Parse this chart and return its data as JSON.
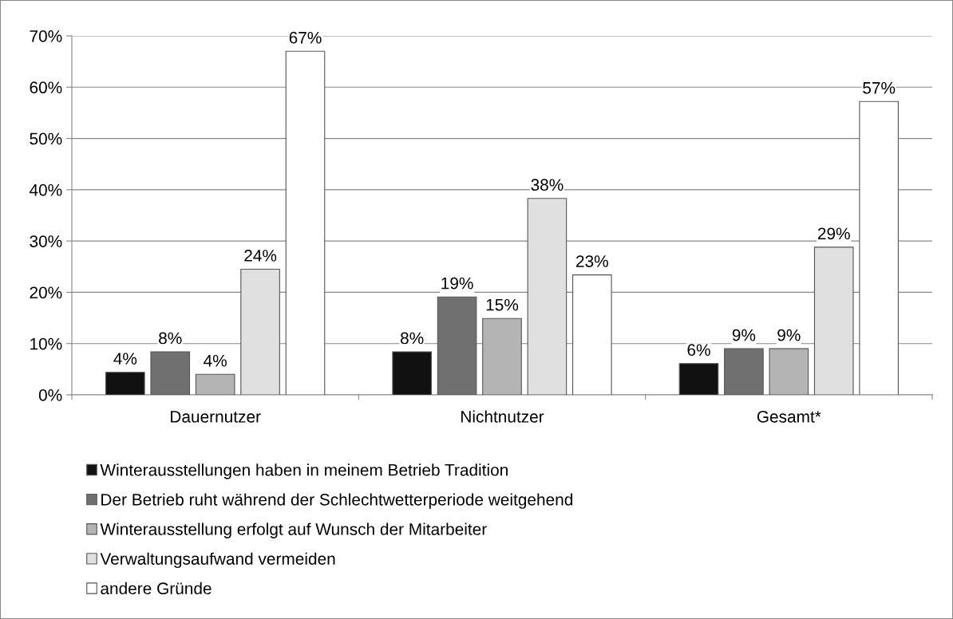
{
  "chart_data": {
    "type": "bar",
    "categories": [
      "Dauernutzer",
      "Nichtnutzer",
      "Gesamt*"
    ],
    "series": [
      {
        "name": "Winterausstellungen haben in meinem Betrieb Tradition",
        "color": "#111111",
        "values": [
          4.4,
          8.4,
          6.1
        ],
        "value_labels": [
          "4%",
          "8%",
          "6%"
        ]
      },
      {
        "name": "Der Betrieb ruht während der Schlechtwetterperiode weitgehend",
        "color": "#707070",
        "values": [
          8.4,
          19.1,
          9.0
        ],
        "value_labels": [
          "8%",
          "19%",
          "9%"
        ]
      },
      {
        "name": "Winterausstellung erfolgt auf Wunsch der Mitarbeiter",
        "color": "#b4b4b4",
        "values": [
          4.0,
          14.9,
          9.0
        ],
        "value_labels": [
          "4%",
          "15%",
          "9%"
        ]
      },
      {
        "name": "Verwaltungsaufwand vermeiden",
        "color": "#e0e0e0",
        "values": [
          24.5,
          38.3,
          28.8
        ],
        "value_labels": [
          "24%",
          "38%",
          "29%"
        ]
      },
      {
        "name": "andere Gründe",
        "color": "#ffffff",
        "values": [
          67.0,
          23.4,
          57.2
        ],
        "value_labels": [
          "67%",
          "23%",
          "57%"
        ]
      }
    ],
    "ylim": [
      0,
      70
    ],
    "yticks": [
      {
        "value": 0,
        "label": "0%"
      },
      {
        "value": 10,
        "label": "10%"
      },
      {
        "value": 20,
        "label": "20%"
      },
      {
        "value": 30,
        "label": "30%"
      },
      {
        "value": 40,
        "label": "40%"
      },
      {
        "value": 50,
        "label": "50%"
      },
      {
        "value": 60,
        "label": "60%"
      },
      {
        "value": 70,
        "label": "70%"
      }
    ],
    "grid": "y",
    "legend": "bottom"
  }
}
